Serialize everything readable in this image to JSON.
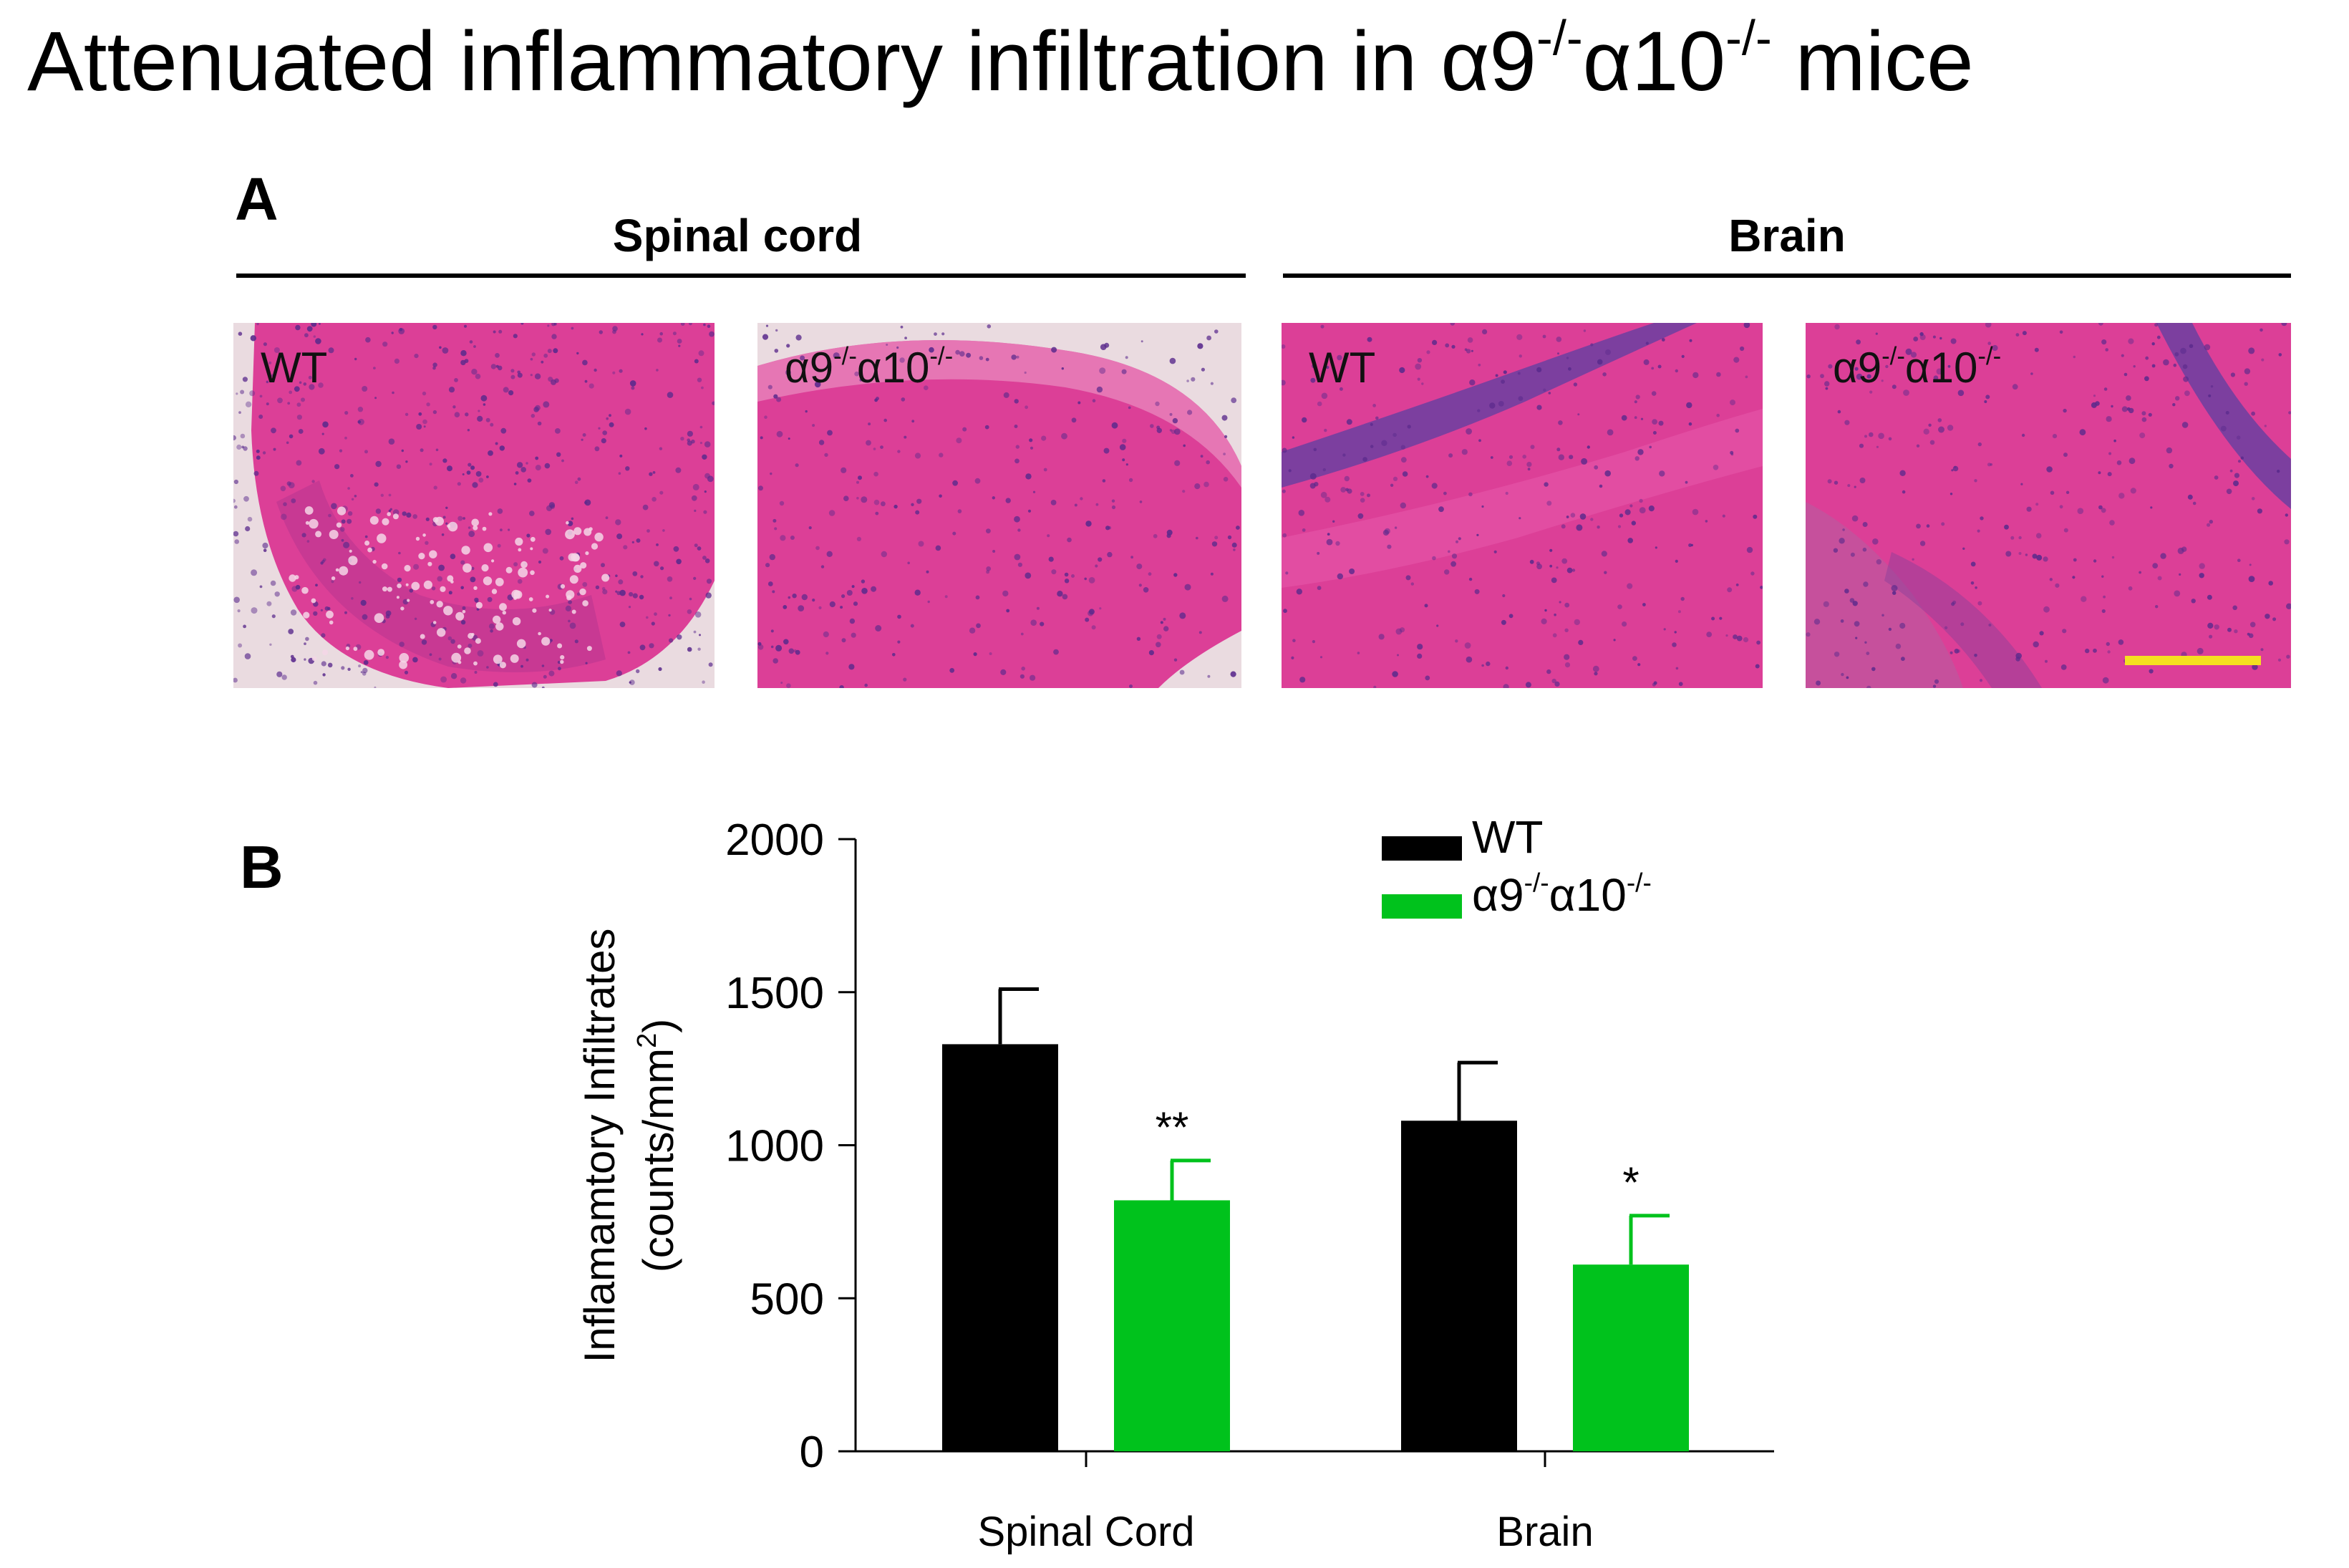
{
  "title": {
    "main": "Attenuated inflammatory infiltration in α9",
    "sup1": "-/-",
    "mid": "α10",
    "sup2": "-/-",
    "tail": " mice"
  },
  "panel_a": {
    "letter": "A",
    "groups": [
      {
        "label": "Spinal cord"
      },
      {
        "label": "Brain"
      }
    ],
    "images": [
      {
        "label_main": "WT",
        "label_sup1": "",
        "label_mid": "",
        "label_sup2": "",
        "tissue": "spinal-cord",
        "genotype": "WT"
      },
      {
        "label_main": "α9",
        "label_sup1": "-/-",
        "label_mid": "α10",
        "label_sup2": "-/-",
        "tissue": "spinal-cord",
        "genotype": "knockout"
      },
      {
        "label_main": "WT",
        "label_sup1": "",
        "label_mid": "",
        "label_sup2": "",
        "tissue": "brain",
        "genotype": "WT"
      },
      {
        "label_main": "α9",
        "label_sup1": "-/-",
        "label_mid": "α10",
        "label_sup2": "-/-",
        "tissue": "brain",
        "genotype": "knockout"
      }
    ],
    "scale_bar_color": "#f5e020",
    "stain_color": "#dc3f97"
  },
  "panel_b": {
    "letter": "B"
  },
  "chart_data": {
    "type": "bar",
    "categories": [
      "Spinal Cord",
      "Brain"
    ],
    "series": [
      {
        "name": "WT",
        "name_sup1": "",
        "name_mid": "",
        "name_sup2": "",
        "color": "#000000",
        "values": [
          1330,
          1080
        ],
        "error": [
          180,
          190
        ],
        "significance": [
          "",
          ""
        ]
      },
      {
        "name": "α9",
        "name_sup1": "-/-",
        "name_mid": "α10",
        "name_sup2": "-/-",
        "color": "#00c21c",
        "values": [
          820,
          610
        ],
        "error": [
          130,
          160
        ],
        "significance": [
          "**",
          "*"
        ]
      }
    ],
    "ylabel_line1": "Inflamamtory Infiltrates",
    "ylabel_line2": "(counts/mm",
    "ylabel_sup": "2",
    "ylabel_close": ")",
    "ylim": [
      0,
      2000
    ],
    "yticks": [
      "0",
      "500",
      "1000",
      "1500",
      "2000"
    ],
    "legend": "top-right",
    "grid": false
  }
}
